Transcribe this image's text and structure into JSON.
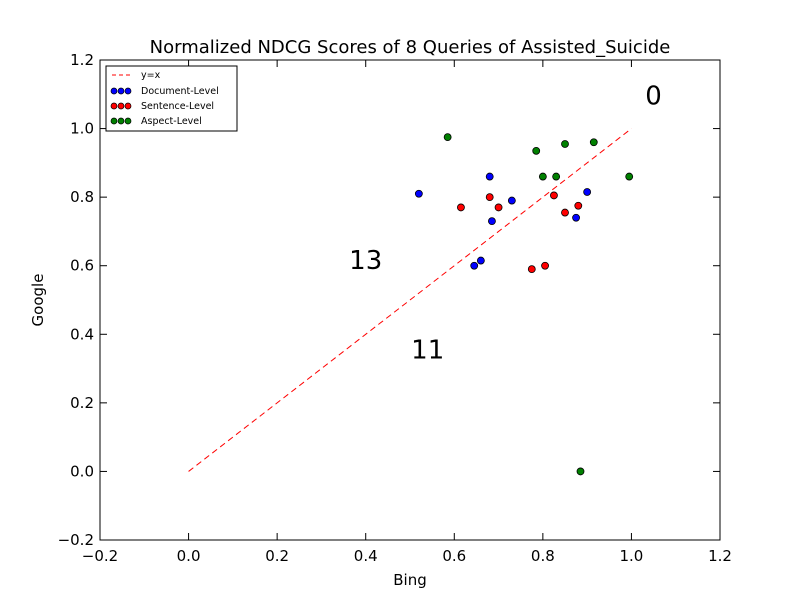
{
  "chart_data": {
    "type": "scatter",
    "title": "Normalized NDCG Scores of 8 Queries of Assisted_Suicide",
    "xlabel": "Bing",
    "ylabel": "Google",
    "xlim": [
      -0.2,
      1.2
    ],
    "ylim": [
      -0.2,
      1.2
    ],
    "xticks": [
      -0.2,
      0.0,
      0.2,
      0.4,
      0.6,
      0.8,
      1.0,
      1.2
    ],
    "yticks": [
      -0.2,
      0.0,
      0.2,
      0.4,
      0.6,
      0.8,
      1.0,
      1.2
    ],
    "xtick_labels": [
      "−0.2",
      "0.0",
      "0.2",
      "0.4",
      "0.6",
      "0.8",
      "1.0",
      "1.2"
    ],
    "ytick_labels": [
      "−0.2",
      "0.0",
      "0.2",
      "0.4",
      "0.6",
      "0.8",
      "1.0",
      "1.2"
    ],
    "grid": false,
    "legend_position": "top-left",
    "reference_line": {
      "name": "y=x",
      "from": [
        0.0,
        0.0
      ],
      "to": [
        1.0,
        1.0
      ],
      "color": "#ff0000",
      "style": "dashed"
    },
    "series": [
      {
        "name": "Document-Level",
        "color": "#0000ff",
        "points": [
          [
            0.52,
            0.81
          ],
          [
            0.68,
            0.86
          ],
          [
            0.73,
            0.79
          ],
          [
            0.685,
            0.73
          ],
          [
            0.66,
            0.615
          ],
          [
            0.645,
            0.6
          ],
          [
            0.9,
            0.815
          ],
          [
            0.875,
            0.74
          ]
        ]
      },
      {
        "name": "Sentence-Level",
        "color": "#ff0000",
        "points": [
          [
            0.615,
            0.77
          ],
          [
            0.68,
            0.8
          ],
          [
            0.7,
            0.77
          ],
          [
            0.825,
            0.805
          ],
          [
            0.85,
            0.755
          ],
          [
            0.88,
            0.775
          ],
          [
            0.775,
            0.59
          ],
          [
            0.805,
            0.6
          ]
        ]
      },
      {
        "name": "Aspect-Level",
        "color": "#008000",
        "points": [
          [
            0.585,
            0.975
          ],
          [
            0.785,
            0.935
          ],
          [
            0.85,
            0.955
          ],
          [
            0.915,
            0.96
          ],
          [
            0.8,
            0.86
          ],
          [
            0.83,
            0.86
          ],
          [
            0.995,
            0.86
          ],
          [
            0.885,
            0.0
          ]
        ]
      }
    ],
    "annotations": [
      {
        "text": "0",
        "x": 1.05,
        "y": 1.07
      },
      {
        "text": "13",
        "x": 0.4,
        "y": 0.59
      },
      {
        "text": "11",
        "x": 0.54,
        "y": 0.33
      }
    ]
  }
}
